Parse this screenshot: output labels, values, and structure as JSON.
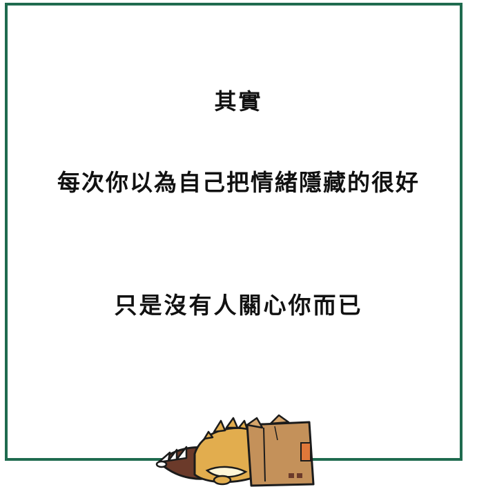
{
  "text": {
    "line_1": "其實",
    "line_2": "每次你以為自己把情緒隱藏的很好",
    "line_3": "只是沒有人關心你而已"
  },
  "colors": {
    "frame": "#1f6b4f",
    "text": "#111111",
    "background": "#ffffff",
    "box": "#c4915a",
    "dino": "#e2ad4e",
    "tail": "#6b3a2a"
  },
  "illustration": "dinosaur-in-cardboard-box"
}
